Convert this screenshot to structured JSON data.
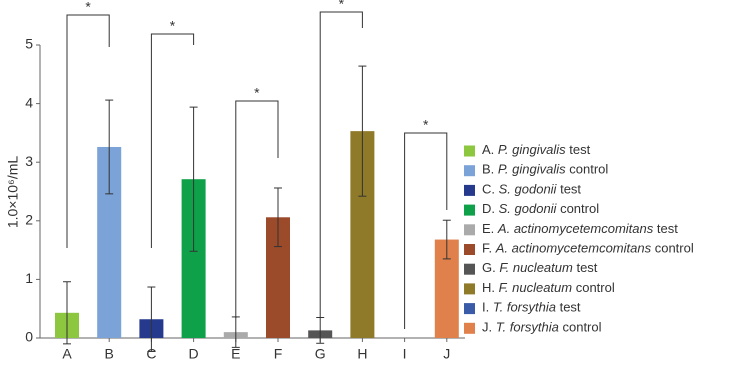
{
  "chart_data": {
    "type": "bar",
    "ylabel": "1.0×10⁶/mL",
    "categories": [
      "A",
      "B",
      "C",
      "D",
      "E",
      "F",
      "G",
      "H",
      "I",
      "J"
    ],
    "values": [
      0.43,
      3.26,
      0.32,
      2.71,
      0.1,
      2.06,
      0.13,
      3.53,
      0,
      1.68
    ],
    "errors": [
      0.53,
      0.8,
      0.55,
      1.23,
      0.26,
      0.5,
      0.22,
      1.11,
      null,
      0.33
    ],
    "colors": [
      "#8dc63f",
      "#7ba3d8",
      "#253a8c",
      "#0fa14a",
      "#aaaaaa",
      "#9b4a2a",
      "#555555",
      "#8f7a2a",
      "#3a5ba8",
      "#e0804a"
    ],
    "legend": [
      {
        "prefix": "A.",
        "italic": "P. gingivalis",
        "suffix": "test"
      },
      {
        "prefix": "B.",
        "italic": "P. gingivalis",
        "suffix": "control"
      },
      {
        "prefix": "C.",
        "italic": "S. godonii",
        "suffix": "test"
      },
      {
        "prefix": "D.",
        "italic": "S. godonii",
        "suffix": "control"
      },
      {
        "prefix": "E.",
        "italic": "A. actinomycetemcomitans",
        "suffix": "test"
      },
      {
        "prefix": "F.",
        "italic": "A. actinomycetemcomitans",
        "suffix": "control"
      },
      {
        "prefix": "G.",
        "italic": "F. nucleatum",
        "suffix": "test"
      },
      {
        "prefix": "H.",
        "italic": "F. nucleatum",
        "suffix": "control"
      },
      {
        "prefix": "I.",
        "italic": "T. forsythia",
        "suffix": "test"
      },
      {
        "prefix": "J.",
        "italic": "T. forsythia",
        "suffix": "control"
      }
    ],
    "annotations": [
      "*",
      "*",
      "*",
      "*",
      "*"
    ],
    "ylim": [
      0,
      5
    ],
    "yticks": [
      0,
      1,
      2,
      3,
      4,
      5
    ]
  }
}
